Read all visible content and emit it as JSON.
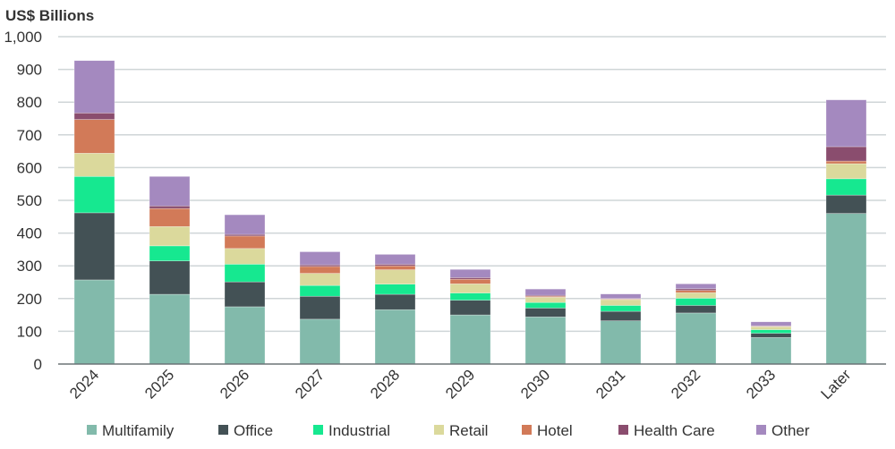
{
  "chart_data": {
    "type": "bar",
    "stacked": true,
    "ylabel": "US$ Billions",
    "ylim": [
      0,
      1000
    ],
    "yticks": [
      0,
      100,
      200,
      300,
      400,
      500,
      600,
      700,
      800,
      900,
      1000
    ],
    "ytick_labels": [
      "0",
      "100",
      "200",
      "300",
      "400",
      "500",
      "600",
      "700",
      "800",
      "900",
      "1,000"
    ],
    "grid": true,
    "legend": "bottom",
    "categories": [
      "2024",
      "2025",
      "2026",
      "2027",
      "2028",
      "2029",
      "2030",
      "2031",
      "2032",
      "2033",
      "Later"
    ],
    "series": [
      {
        "name": "Multifamily",
        "color": "#82BAAB",
        "values": [
          257,
          213,
          175,
          137,
          166,
          150,
          144,
          132,
          156,
          81,
          460
        ]
      },
      {
        "name": "Office",
        "color": "#435155",
        "values": [
          205,
          102,
          76,
          70,
          47,
          45,
          27,
          29,
          23,
          13,
          56
        ]
      },
      {
        "name": "Industrial",
        "color": "#16E890",
        "values": [
          111,
          46,
          54,
          33,
          31,
          22,
          17,
          18,
          22,
          11,
          50
        ]
      },
      {
        "name": "Retail",
        "color": "#DBD99C",
        "values": [
          71,
          59,
          48,
          37,
          44,
          28,
          16,
          18,
          17,
          9,
          46
        ]
      },
      {
        "name": "Hotel",
        "color": "#D27A58",
        "values": [
          103,
          55,
          38,
          21,
          12,
          14,
          3,
          2,
          7,
          1,
          8
        ]
      },
      {
        "name": "Health Care",
        "color": "#8A4D6E",
        "values": [
          20,
          8,
          5,
          5,
          5,
          5,
          3,
          1,
          5,
          2,
          44
        ]
      },
      {
        "name": "Other",
        "color": "#A489BF",
        "values": [
          160,
          90,
          60,
          40,
          30,
          25,
          19,
          14,
          15,
          12,
          143
        ]
      }
    ]
  }
}
